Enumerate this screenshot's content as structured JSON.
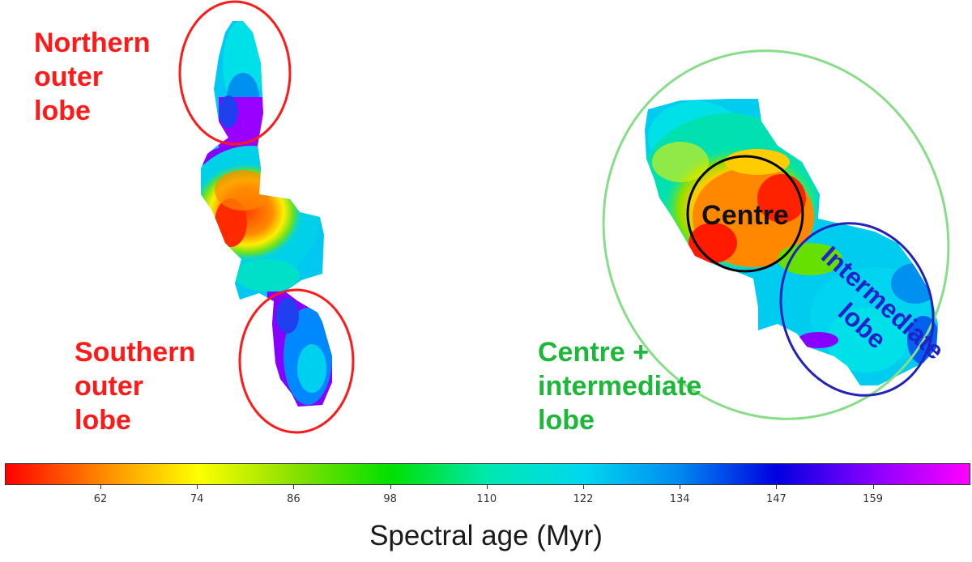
{
  "labels": {
    "northern": "Northern\nouter\nlobe",
    "southern": "Southern\nouter\nlobe",
    "centre_intermediate": "Centre +\nintermediate\nlobe",
    "centre": "Centre",
    "intermediate": "Intermediate\nlobe"
  },
  "colorbar": {
    "label": "Spectral age (Myr)",
    "tick_labels": [
      "62",
      "74",
      "86",
      "98",
      "110",
      "122",
      "134",
      "147",
      "159"
    ],
    "colors": [
      "#ff0000",
      "#ff8800",
      "#ffff00",
      "#88e000",
      "#00e000",
      "#00e8b0",
      "#00d8f0",
      "#0088f0",
      "#0000e0",
      "#8800ff",
      "#ff00ff"
    ]
  },
  "palette": {
    "red_annotation": "#ff1a1a",
    "green_annotation": "#1db83a",
    "black_circle": "#000000",
    "blue_ellipse": "#2222bb"
  }
}
